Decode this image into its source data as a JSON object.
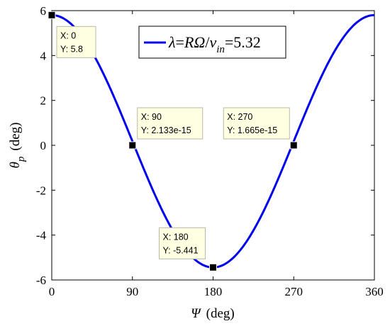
{
  "chart_data": {
    "type": "line",
    "x_unit_symbol": "Ψ",
    "x_unit": "(deg)",
    "y_unit_symbol": "θ",
    "y_unit_sub": "p",
    "y_unit": "(deg)",
    "xlim": [
      0,
      360
    ],
    "ylim": [
      -6,
      6
    ],
    "xticks": [
      0,
      90,
      180,
      270,
      360
    ],
    "yticks": [
      -6,
      -4,
      -2,
      0,
      2,
      4,
      6
    ],
    "grid": false,
    "legend_position": "top-right",
    "series": [
      {
        "name": "λ=RΩ/v_in=5.32",
        "color": "#0000ee",
        "mean": 0.18,
        "amplitude": 5.62,
        "x": [
          0,
          15,
          30,
          45,
          60,
          75,
          90,
          105,
          120,
          135,
          150,
          165,
          180,
          195,
          210,
          225,
          240,
          255,
          270,
          285,
          300,
          315,
          330,
          345,
          360
        ],
        "y": [
          5.8,
          5.68,
          5.05,
          3.95,
          2.6,
          1.2,
          0.0,
          -1.6,
          -3.0,
          -4.2,
          -5.0,
          -5.35,
          -5.441,
          -5.35,
          -5.0,
          -4.2,
          -3.0,
          -1.6,
          0.0,
          1.2,
          2.6,
          3.95,
          5.05,
          5.68,
          5.8
        ]
      }
    ],
    "legend": {
      "lambda": "λ",
      "eq1": "=",
      "R": "R",
      "Omega": "Ω",
      "slash": "/",
      "v": "v",
      "sub": "in",
      "eq2": "=5.32"
    },
    "datatips": [
      {
        "x": 0,
        "y": 5.8,
        "x_text": "X: 0",
        "y_text": "Y: 5.8"
      },
      {
        "x": 90,
        "y": 0,
        "x_text": "X: 90",
        "y_text": "Y: 2.133e-15"
      },
      {
        "x": 180,
        "y": -5.441,
        "x_text": "X: 180",
        "y_text": "Y: -5.441"
      },
      {
        "x": 270,
        "y": 0,
        "x_text": "X: 270",
        "y_text": "Y: 1.665e-15"
      }
    ]
  }
}
